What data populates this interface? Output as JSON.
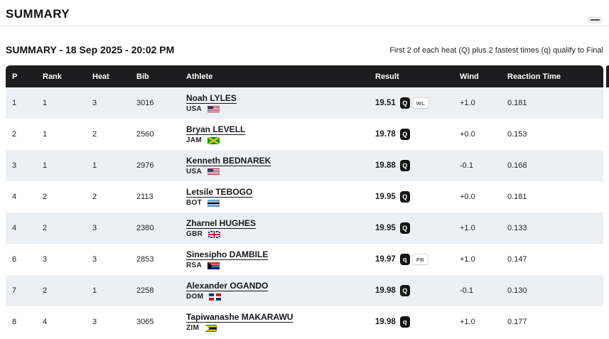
{
  "page": {
    "title": "SUMMARY",
    "subtitle": "SUMMARY - 18 Sep 2025 - 20:02 PM",
    "qualification_note": "First 2 of each heat (Q) plus 2 fastest times (q) qualify to Final"
  },
  "colors": {
    "header_bg": "#1d1d1f",
    "row_alt_bg": "#ecf0f3",
    "badge_bg": "#141414"
  },
  "table": {
    "columns": [
      "P",
      "Rank",
      "Heat",
      "Bib",
      "Athlete",
      "Result",
      "Wind",
      "Reaction Time"
    ],
    "rows": [
      {
        "p": "1",
        "rank": "1",
        "heat": "3",
        "bib": "3016",
        "athlete": "Noah LYLES",
        "country": "USA",
        "result": "19.51",
        "qual": "Q",
        "record": "WL",
        "wind": "+1.0",
        "reaction": "0.181"
      },
      {
        "p": "2",
        "rank": "1",
        "heat": "2",
        "bib": "2560",
        "athlete": "Bryan LEVELL",
        "country": "JAM",
        "result": "19.78",
        "qual": "Q",
        "record": "",
        "wind": "+0.0",
        "reaction": "0.153"
      },
      {
        "p": "3",
        "rank": "1",
        "heat": "1",
        "bib": "2976",
        "athlete": "Kenneth BEDNAREK",
        "country": "USA",
        "result": "19.88",
        "qual": "Q",
        "record": "",
        "wind": "-0.1",
        "reaction": "0.168"
      },
      {
        "p": "4",
        "rank": "2",
        "heat": "2",
        "bib": "2113",
        "athlete": "Letsile TEBOGO",
        "country": "BOT",
        "result": "19.95",
        "qual": "Q",
        "record": "",
        "wind": "+0.0",
        "reaction": "0.181"
      },
      {
        "p": "4",
        "rank": "2",
        "heat": "3",
        "bib": "2380",
        "athlete": "Zharnel HUGHES",
        "country": "GBR",
        "result": "19.95",
        "qual": "Q",
        "record": "",
        "wind": "+1.0",
        "reaction": "0.133"
      },
      {
        "p": "6",
        "rank": "3",
        "heat": "3",
        "bib": "2853",
        "athlete": "Sinesipho DAMBILE",
        "country": "RSA",
        "result": "19.97",
        "qual": "q",
        "record": "PB",
        "wind": "+1.0",
        "reaction": "0.147"
      },
      {
        "p": "7",
        "rank": "2",
        "heat": "1",
        "bib": "2258",
        "athlete": "Alexander OGANDO",
        "country": "DOM",
        "result": "19.98",
        "qual": "Q",
        "record": "",
        "wind": "-0.1",
        "reaction": "0.130"
      },
      {
        "p": "8",
        "rank": "4",
        "heat": "3",
        "bib": "3065",
        "athlete": "Tapiwanashe MAKARAWU",
        "country": "ZIM",
        "result": "19.98",
        "qual": "q",
        "record": "",
        "wind": "+1.0",
        "reaction": "0.177"
      }
    ]
  }
}
